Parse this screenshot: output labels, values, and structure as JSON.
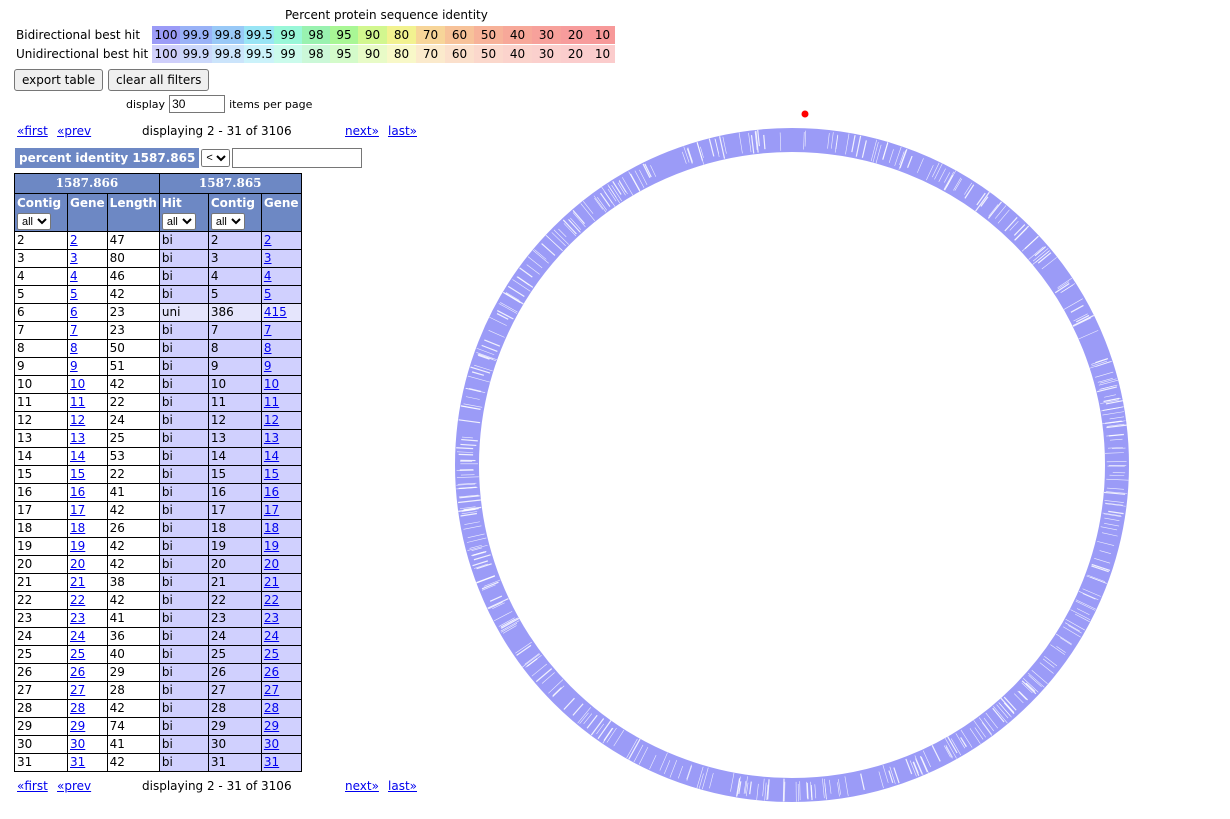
{
  "legend": {
    "title": "Percent protein sequence identity",
    "bidirectional_label": "Bidirectional best hit",
    "unidirectional_label": "Unidirectional best hit",
    "values": [
      "100",
      "99.9",
      "99.8",
      "99.5",
      "99",
      "98",
      "95",
      "90",
      "80",
      "70",
      "60",
      "50",
      "40",
      "30",
      "20",
      "10"
    ],
    "bi_colors": [
      "#9b9bf7",
      "#99b2f7",
      "#99c9f7",
      "#99e5f5",
      "#99f7d8",
      "#99f2b0",
      "#a9f795",
      "#d2f78f",
      "#f2f290",
      "#f7d599",
      "#f7c299",
      "#f7b299",
      "#f7a899",
      "#f7a19b",
      "#f79c9c",
      "#f79999"
    ],
    "uni_colors": [
      "#cfcffb",
      "#cbd8fb",
      "#cbe4fb",
      "#cbf2fa",
      "#cbfbec",
      "#cbf8d8",
      "#d4fbca",
      "#e8fbc7",
      "#f8f8c8",
      "#fbeacc",
      "#fbe0cc",
      "#fbd8cc",
      "#fbd3cc",
      "#fbd0cd",
      "#fbcdcd",
      "#fbcccc"
    ]
  },
  "buttons": {
    "export": "export table",
    "clear": "clear all filters"
  },
  "display": {
    "label": "display",
    "value": "30",
    "suffix": "items per page"
  },
  "pager": {
    "first": "«first",
    "prev": "«prev",
    "info": "displaying 2 - 31 of 3106",
    "next": "next»",
    "last": "last»"
  },
  "filter": {
    "title": "percent identity 1587.865",
    "operator": "<",
    "value": ""
  },
  "table": {
    "group_left": "1587.866",
    "group_right": "1587.865",
    "headers": [
      "Contig",
      "Gene",
      "Length",
      "Hit",
      "Contig",
      "Gene"
    ],
    "select_all": "all",
    "rows": [
      [
        "2",
        "2",
        "47",
        "bi",
        "2",
        "2"
      ],
      [
        "3",
        "3",
        "80",
        "bi",
        "3",
        "3"
      ],
      [
        "4",
        "4",
        "46",
        "bi",
        "4",
        "4"
      ],
      [
        "5",
        "5",
        "42",
        "bi",
        "5",
        "5"
      ],
      [
        "6",
        "6",
        "23",
        "uni",
        "386",
        "415"
      ],
      [
        "7",
        "7",
        "23",
        "bi",
        "7",
        "7"
      ],
      [
        "8",
        "8",
        "50",
        "bi",
        "8",
        "8"
      ],
      [
        "9",
        "9",
        "51",
        "bi",
        "9",
        "9"
      ],
      [
        "10",
        "10",
        "42",
        "bi",
        "10",
        "10"
      ],
      [
        "11",
        "11",
        "22",
        "bi",
        "11",
        "11"
      ],
      [
        "12",
        "12",
        "24",
        "bi",
        "12",
        "12"
      ],
      [
        "13",
        "13",
        "25",
        "bi",
        "13",
        "13"
      ],
      [
        "14",
        "14",
        "53",
        "bi",
        "14",
        "14"
      ],
      [
        "15",
        "15",
        "22",
        "bi",
        "15",
        "15"
      ],
      [
        "16",
        "16",
        "41",
        "bi",
        "16",
        "16"
      ],
      [
        "17",
        "17",
        "42",
        "bi",
        "17",
        "17"
      ],
      [
        "18",
        "18",
        "26",
        "bi",
        "18",
        "18"
      ],
      [
        "19",
        "19",
        "42",
        "bi",
        "19",
        "19"
      ],
      [
        "20",
        "20",
        "42",
        "bi",
        "20",
        "20"
      ],
      [
        "21",
        "21",
        "38",
        "bi",
        "21",
        "21"
      ],
      [
        "22",
        "22",
        "42",
        "bi",
        "22",
        "22"
      ],
      [
        "23",
        "23",
        "41",
        "bi",
        "23",
        "23"
      ],
      [
        "24",
        "24",
        "36",
        "bi",
        "24",
        "24"
      ],
      [
        "25",
        "25",
        "40",
        "bi",
        "25",
        "25"
      ],
      [
        "26",
        "26",
        "29",
        "bi",
        "26",
        "26"
      ],
      [
        "27",
        "27",
        "28",
        "bi",
        "27",
        "27"
      ],
      [
        "28",
        "28",
        "42",
        "bi",
        "28",
        "28"
      ],
      [
        "29",
        "29",
        "74",
        "bi",
        "29",
        "29"
      ],
      [
        "30",
        "30",
        "41",
        "bi",
        "30",
        "30"
      ],
      [
        "31",
        "31",
        "42",
        "bi",
        "31",
        "31"
      ]
    ]
  },
  "ring": {
    "color": "#9b9bf7",
    "gap_color": "#ffffff",
    "marker_color": "#ff0000"
  }
}
